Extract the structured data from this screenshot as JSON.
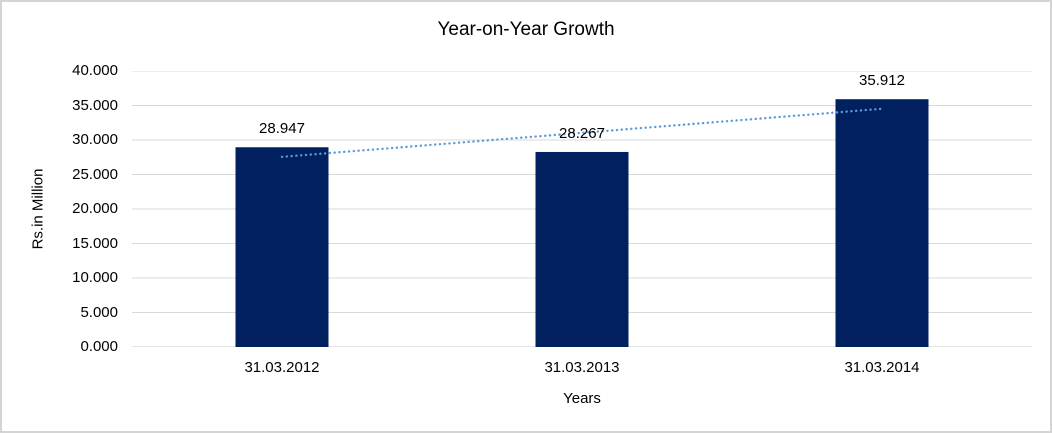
{
  "chart_data": {
    "type": "bar",
    "title": "Year-on-Year Growth",
    "xlabel": "Years",
    "ylabel": "Rs.in Million",
    "categories": [
      "31.03.2012",
      "31.03.2013",
      "31.03.2014"
    ],
    "values": [
      28947,
      28267,
      35912
    ],
    "bar_labels": [
      "28.947",
      "28.267",
      "35.912"
    ],
    "ylim": [
      0,
      40000
    ],
    "ytick_step": 5000,
    "ytick_labels": [
      "0.000",
      "5.000",
      "10.000",
      "15.000",
      "20.000",
      "25.000",
      "30.000",
      "35.000",
      "40.000"
    ],
    "grid": true,
    "legend": "none",
    "trendline": {
      "type": "linear",
      "style": "dotted"
    },
    "colors": {
      "bar": "#002060",
      "trendline": "#5b9bd5",
      "gridline": "#d9d9d9",
      "axis_line": "#c9c9c9",
      "text": "#000000"
    }
  }
}
